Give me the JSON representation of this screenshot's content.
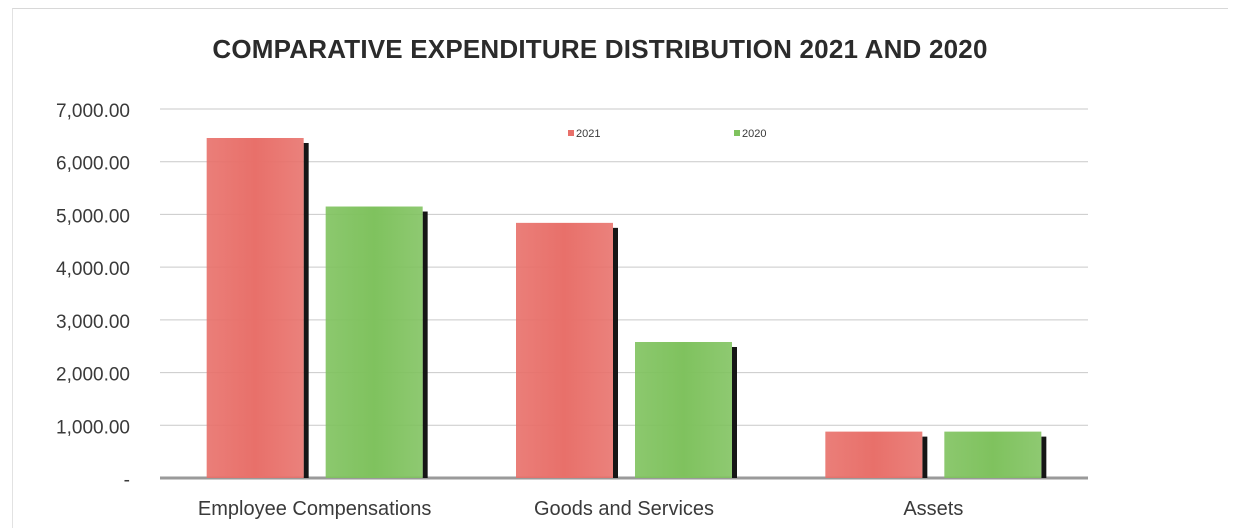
{
  "chart_data": {
    "type": "bar",
    "title": "COMPARATIVE EXPENDITURE DISTRIBUTION 2021 AND 2020",
    "categories": [
      "Employee Compensations",
      "Goods and Services",
      "Assets"
    ],
    "series": [
      {
        "name": "2021",
        "values": [
          6450,
          4840,
          880
        ],
        "color": "#e8706a"
      },
      {
        "name": "2020",
        "values": [
          5150,
          2580,
          880
        ],
        "color": "#7fc25e"
      }
    ],
    "ylim": [
      0,
      7000
    ],
    "yticks": [
      {
        "value": 0,
        "label": "-"
      },
      {
        "value": 1000,
        "label": "1,000.00"
      },
      {
        "value": 2000,
        "label": "2,000.00"
      },
      {
        "value": 3000,
        "label": "3,000.00"
      },
      {
        "value": 4000,
        "label": "4,000.00"
      },
      {
        "value": 5000,
        "label": "5,000.00"
      },
      {
        "value": 6000,
        "label": "6,000.00"
      },
      {
        "value": 7000,
        "label": "7,000.00"
      }
    ],
    "grid": true,
    "legend_position": "top-center",
    "xlabel": "",
    "ylabel": ""
  }
}
